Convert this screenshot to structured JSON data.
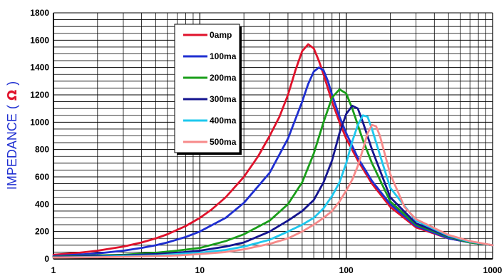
{
  "chart_data": {
    "type": "line",
    "x_scale": "log",
    "xlim": [
      1,
      1000
    ],
    "ylim": [
      0,
      1800
    ],
    "grid": true,
    "legend_placement": "upper-left",
    "ylabel": "IMPEDANCE",
    "ylabel_unit": "Ω",
    "xlabel": "",
    "x_ticks": [
      "1",
      "10",
      "100",
      "1000"
    ],
    "y_ticks": [
      "0",
      "200",
      "400",
      "600",
      "800",
      "1000",
      "1200",
      "1400",
      "1600",
      "1800"
    ],
    "series": [
      {
        "name": "0amp",
        "color": "#e0122b",
        "points": [
          [
            1,
            30
          ],
          [
            1.5,
            45
          ],
          [
            2,
            60
          ],
          [
            3,
            90
          ],
          [
            4,
            120
          ],
          [
            5,
            150
          ],
          [
            6,
            180
          ],
          [
            8,
            240
          ],
          [
            10,
            300
          ],
          [
            12,
            360
          ],
          [
            15,
            450
          ],
          [
            20,
            600
          ],
          [
            25,
            750
          ],
          [
            30,
            900
          ],
          [
            35,
            1040
          ],
          [
            40,
            1200
          ],
          [
            45,
            1380
          ],
          [
            50,
            1520
          ],
          [
            55,
            1570
          ],
          [
            60,
            1540
          ],
          [
            65,
            1450
          ],
          [
            70,
            1350
          ],
          [
            80,
            1150
          ],
          [
            90,
            1000
          ],
          [
            100,
            880
          ],
          [
            120,
            720
          ],
          [
            150,
            550
          ],
          [
            200,
            380
          ],
          [
            300,
            230
          ],
          [
            500,
            150
          ],
          [
            700,
            120
          ],
          [
            1000,
            100
          ]
        ]
      },
      {
        "name": "100ma",
        "color": "#1f2fd1",
        "points": [
          [
            1,
            20
          ],
          [
            2,
            40
          ],
          [
            3,
            60
          ],
          [
            4,
            80
          ],
          [
            5,
            100
          ],
          [
            6,
            120
          ],
          [
            8,
            160
          ],
          [
            10,
            200
          ],
          [
            15,
            300
          ],
          [
            20,
            410
          ],
          [
            30,
            630
          ],
          [
            40,
            880
          ],
          [
            50,
            1150
          ],
          [
            55,
            1280
          ],
          [
            60,
            1370
          ],
          [
            65,
            1400
          ],
          [
            70,
            1380
          ],
          [
            75,
            1300
          ],
          [
            80,
            1200
          ],
          [
            90,
            1040
          ],
          [
            100,
            920
          ],
          [
            120,
            740
          ],
          [
            150,
            570
          ],
          [
            200,
            400
          ],
          [
            300,
            240
          ],
          [
            500,
            150
          ],
          [
            700,
            120
          ],
          [
            1000,
            100
          ]
        ]
      },
      {
        "name": "200ma",
        "color": "#1a9e1a",
        "points": [
          [
            1,
            15
          ],
          [
            2,
            25
          ],
          [
            3,
            30
          ],
          [
            5,
            45
          ],
          [
            7,
            60
          ],
          [
            10,
            80
          ],
          [
            15,
            130
          ],
          [
            20,
            180
          ],
          [
            30,
            280
          ],
          [
            40,
            400
          ],
          [
            50,
            560
          ],
          [
            60,
            770
          ],
          [
            70,
            1000
          ],
          [
            80,
            1180
          ],
          [
            90,
            1240
          ],
          [
            100,
            1210
          ],
          [
            110,
            1100
          ],
          [
            120,
            980
          ],
          [
            130,
            870
          ],
          [
            150,
            700
          ],
          [
            200,
            420
          ],
          [
            300,
            250
          ],
          [
            500,
            160
          ],
          [
            700,
            120
          ],
          [
            1000,
            100
          ]
        ]
      },
      {
        "name": "300ma",
        "color": "#14148f",
        "points": [
          [
            1,
            12
          ],
          [
            2,
            20
          ],
          [
            3,
            25
          ],
          [
            5,
            35
          ],
          [
            7,
            45
          ],
          [
            10,
            60
          ],
          [
            15,
            90
          ],
          [
            20,
            120
          ],
          [
            30,
            200
          ],
          [
            40,
            280
          ],
          [
            50,
            350
          ],
          [
            60,
            430
          ],
          [
            70,
            560
          ],
          [
            80,
            720
          ],
          [
            90,
            920
          ],
          [
            100,
            1060
          ],
          [
            110,
            1120
          ],
          [
            120,
            1100
          ],
          [
            130,
            1000
          ],
          [
            150,
            800
          ],
          [
            200,
            450
          ],
          [
            300,
            260
          ],
          [
            500,
            165
          ],
          [
            700,
            125
          ],
          [
            1000,
            100
          ]
        ]
      },
      {
        "name": "400ma",
        "color": "#1ec8ee",
        "points": [
          [
            1,
            10
          ],
          [
            2,
            15
          ],
          [
            3,
            20
          ],
          [
            5,
            25
          ],
          [
            7,
            35
          ],
          [
            10,
            45
          ],
          [
            15,
            65
          ],
          [
            20,
            90
          ],
          [
            30,
            140
          ],
          [
            40,
            200
          ],
          [
            50,
            250
          ],
          [
            60,
            300
          ],
          [
            70,
            370
          ],
          [
            80,
            460
          ],
          [
            90,
            560
          ],
          [
            100,
            700
          ],
          [
            110,
            860
          ],
          [
            120,
            980
          ],
          [
            130,
            1050
          ],
          [
            140,
            1040
          ],
          [
            150,
            950
          ],
          [
            170,
            760
          ],
          [
            200,
            520
          ],
          [
            300,
            280
          ],
          [
            500,
            170
          ],
          [
            700,
            125
          ],
          [
            1000,
            100
          ]
        ]
      },
      {
        "name": "500ma",
        "color": "#f78a8a",
        "points": [
          [
            1,
            10
          ],
          [
            2,
            12
          ],
          [
            3,
            15
          ],
          [
            5,
            20
          ],
          [
            7,
            25
          ],
          [
            10,
            35
          ],
          [
            15,
            50
          ],
          [
            20,
            70
          ],
          [
            30,
            110
          ],
          [
            40,
            150
          ],
          [
            50,
            200
          ],
          [
            60,
            250
          ],
          [
            70,
            300
          ],
          [
            80,
            350
          ],
          [
            90,
            420
          ],
          [
            100,
            500
          ],
          [
            110,
            580
          ],
          [
            120,
            680
          ],
          [
            130,
            800
          ],
          [
            140,
            920
          ],
          [
            150,
            980
          ],
          [
            160,
            970
          ],
          [
            170,
            900
          ],
          [
            180,
            800
          ],
          [
            200,
            620
          ],
          [
            250,
            380
          ],
          [
            300,
            290
          ],
          [
            500,
            175
          ],
          [
            700,
            130
          ],
          [
            1000,
            100
          ]
        ]
      }
    ]
  }
}
